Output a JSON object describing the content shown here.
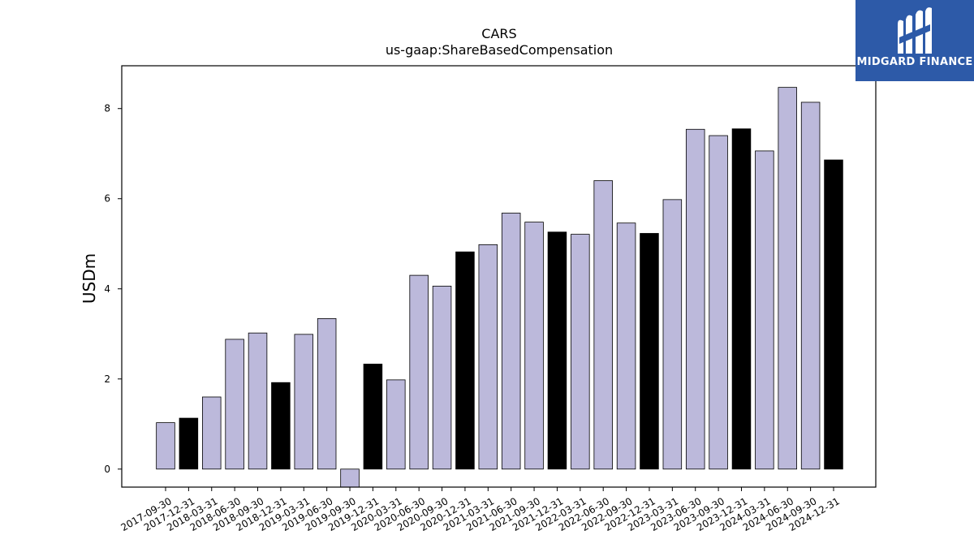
{
  "chart_data": {
    "type": "bar",
    "title": "CARS",
    "subtitle": "us-gaap:ShareBasedCompensation",
    "ylabel": "USDm",
    "xlabel": "",
    "ylim": [
      -0.4,
      8.95
    ],
    "yticks": [
      0,
      2,
      4,
      6,
      8
    ],
    "grid": false,
    "categories": [
      "2017-09-30",
      "2017-12-31",
      "2018-03-31",
      "2018-06-30",
      "2018-09-30",
      "2018-12-31",
      "2019-03-31",
      "2019-06-30",
      "2019-09-30",
      "2019-12-31",
      "2020-03-31",
      "2020-06-30",
      "2020-09-30",
      "2020-12-31",
      "2021-03-31",
      "2021-06-30",
      "2021-09-30",
      "2021-12-31",
      "2022-03-31",
      "2022-06-30",
      "2022-09-30",
      "2022-12-31",
      "2023-03-31",
      "2023-06-30",
      "2023-09-30",
      "2023-12-31",
      "2024-03-31",
      "2024-06-30",
      "2024-09-30",
      "2024-12-31"
    ],
    "values": [
      1.03,
      1.13,
      1.6,
      2.88,
      3.02,
      1.92,
      2.99,
      3.34,
      -0.4,
      2.33,
      1.98,
      4.3,
      4.06,
      4.82,
      4.98,
      5.68,
      5.48,
      5.26,
      5.21,
      6.4,
      5.46,
      5.23,
      5.98,
      7.54,
      7.4,
      7.55,
      7.06,
      8.47,
      8.14,
      6.86
    ],
    "highlight": [
      false,
      true,
      false,
      false,
      false,
      true,
      false,
      false,
      false,
      true,
      false,
      false,
      false,
      true,
      false,
      false,
      false,
      true,
      false,
      false,
      false,
      true,
      false,
      false,
      false,
      true,
      false,
      false,
      false,
      true
    ],
    "colors": {
      "default": "#bcb9db",
      "highlight": "#000000",
      "edge": "#000000"
    }
  },
  "logo": {
    "text": "MIDGARD FINANCE",
    "background": "#2d5aa8"
  }
}
